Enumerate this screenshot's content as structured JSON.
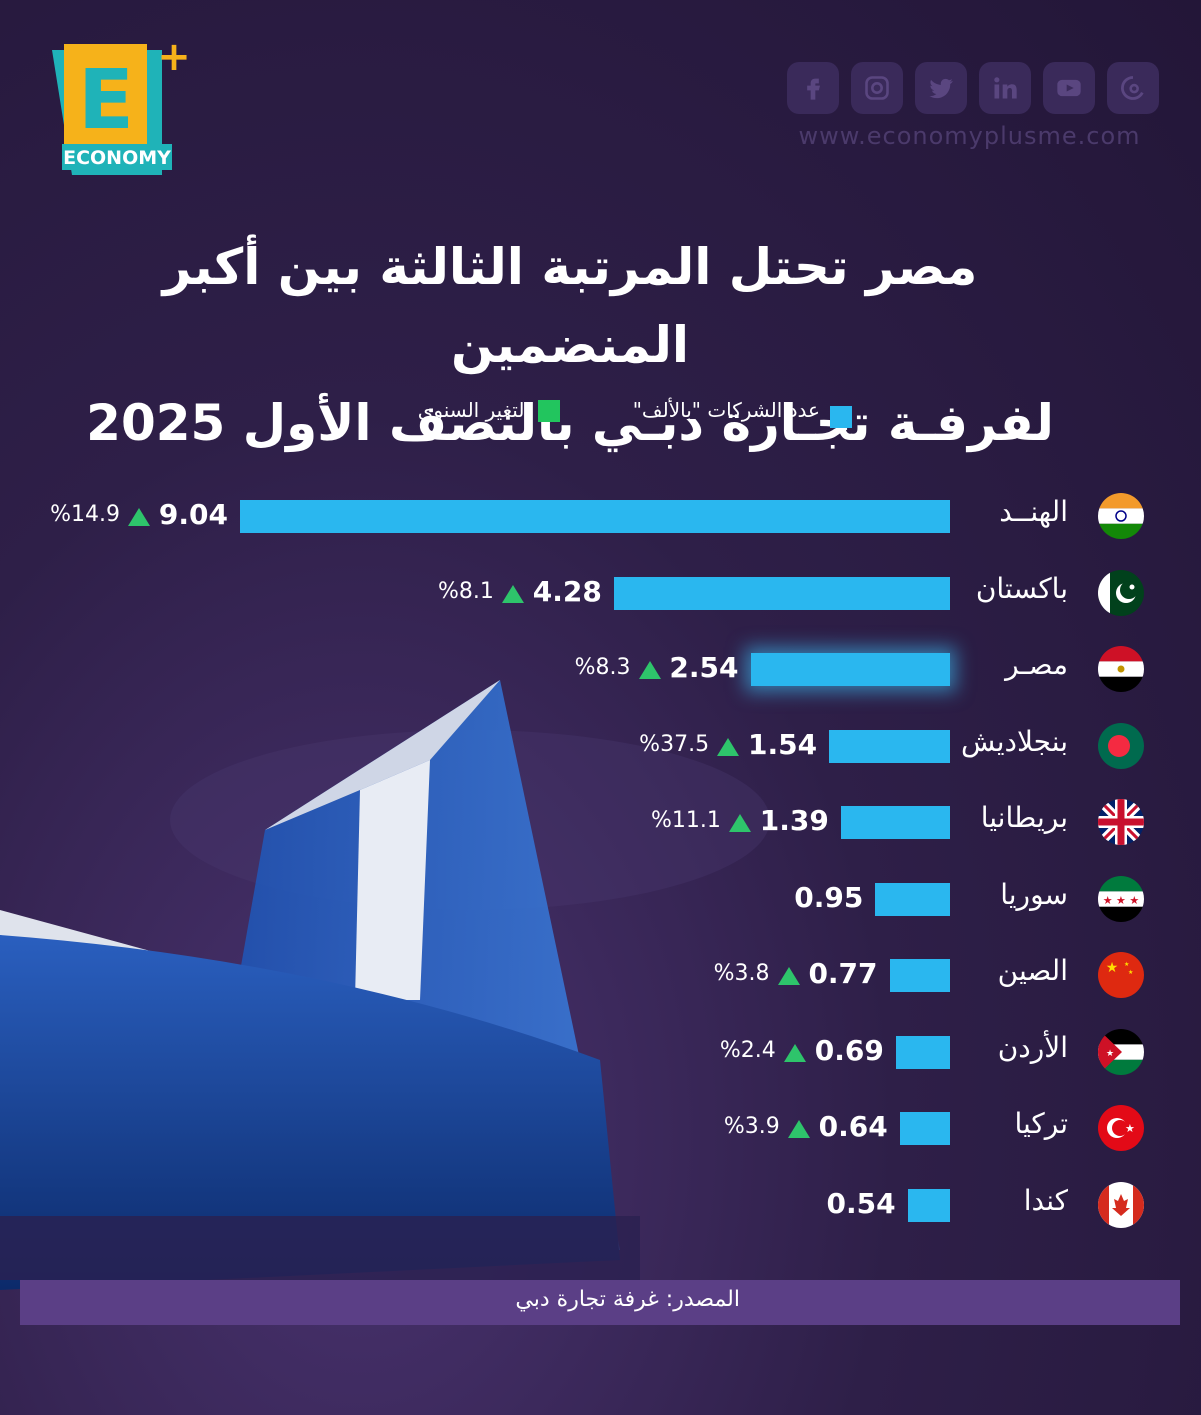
{
  "brand": {
    "logo_letter": "E",
    "logo_plus": "+",
    "logo_word": "ECONOMY",
    "website": "www.economyplusme.com"
  },
  "social_icons": [
    "facebook-icon",
    "instagram-icon",
    "twitter-icon",
    "linkedin-icon",
    "youtube-icon",
    "threads-icon"
  ],
  "footer": {
    "source": "المصدر: غرفة تجارة دبي"
  },
  "colors": {
    "bar": "#2ab7ef",
    "increase": "#2ec46b",
    "legend_green": "#22c55e"
  },
  "chart_data": {
    "type": "bar",
    "orientation": "horizontal",
    "title": "مصر تحتل المرتبة الثالثة بين أكبر المنضمين",
    "subtitle": "لفرفـة تجـارة دبـي بالنصف الأول 2025",
    "legend": [
      "عدد الشركات \"بالألف\"",
      "التغير السنوي"
    ],
    "categories": [
      "الهنــد",
      "باكستان",
      "مصـر",
      "بنجلاديش",
      "بريطانيا",
      "سوريا",
      "الصين",
      "الأردن",
      "تركيا",
      "كندا"
    ],
    "series": [
      {
        "name": "عدد الشركات \"بالألف\"",
        "values": [
          9.04,
          4.28,
          2.54,
          1.54,
          1.39,
          0.95,
          0.77,
          0.69,
          0.64,
          0.54
        ]
      },
      {
        "name": "التغير السنوي",
        "values": [
          "%14.9",
          "%8.1",
          "%8.3",
          "%37.5",
          "%11.1",
          null,
          "%3.8",
          "%2.4",
          "%3.9",
          null
        ]
      }
    ],
    "value_labels": [
      "9.04",
      "4.28",
      "2.54",
      "1.54",
      "1.39",
      "0.95",
      "0.77",
      "0.69",
      "0.64",
      "0.54"
    ],
    "highlight": "مصـر"
  }
}
